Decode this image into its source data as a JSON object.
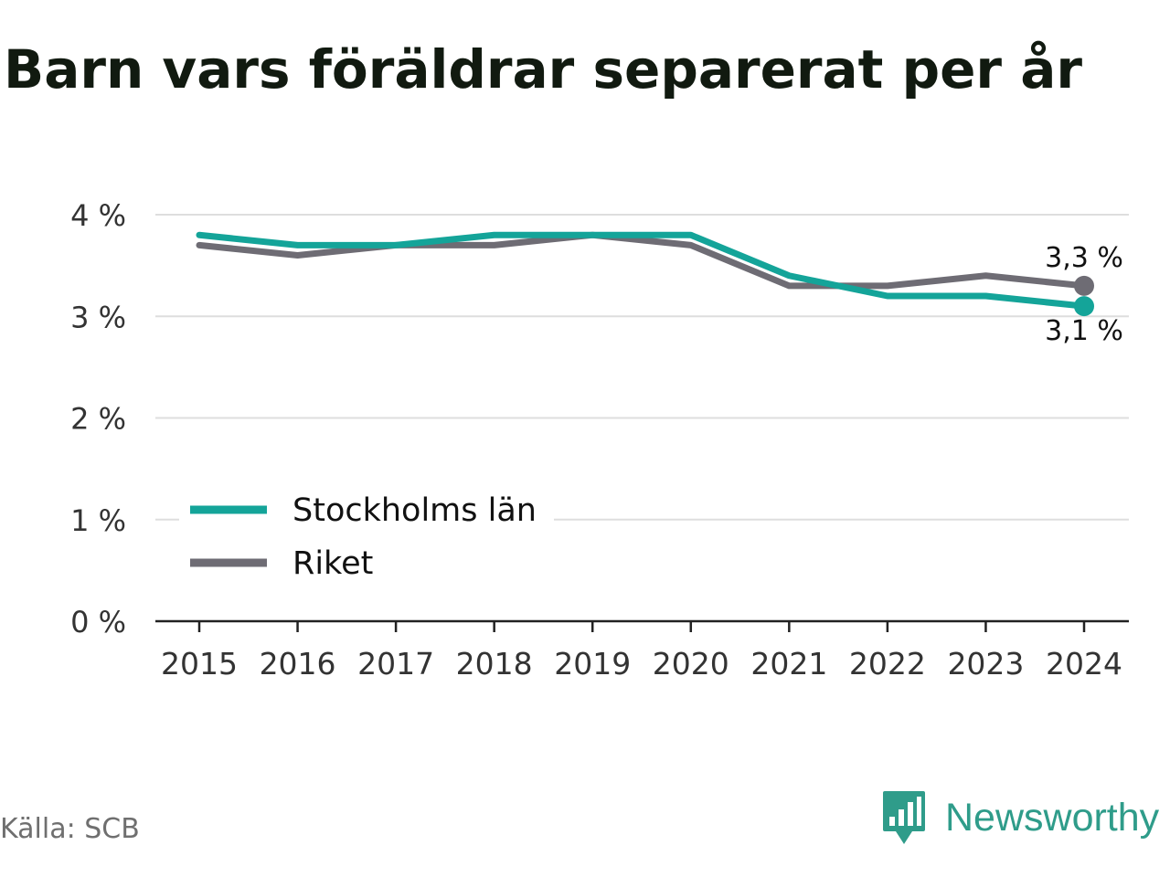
{
  "title": "Barn vars föräldrar separerat per år",
  "source": "Källa: SCB",
  "brand": {
    "name": "Newsworthy",
    "color": "#2f9c8a"
  },
  "colors": {
    "stockholm": "#14a499",
    "riket": "#6e6c74",
    "grid": "#dedede",
    "axis": "#222222"
  },
  "chart_data": {
    "type": "line",
    "categories": [
      "2015",
      "2016",
      "2017",
      "2018",
      "2019",
      "2020",
      "2021",
      "2022",
      "2023",
      "2024"
    ],
    "y_ticks": [
      "0 %",
      "1 %",
      "2 %",
      "3 %",
      "4 %"
    ],
    "ylim": [
      0,
      4
    ],
    "grid": true,
    "legend_position": "left, lower middle",
    "series": [
      {
        "name": "Stockholms län",
        "values": [
          3.8,
          3.7,
          3.7,
          3.8,
          3.8,
          3.8,
          3.4,
          3.2,
          3.2,
          3.1
        ],
        "end_label": "3,1 %"
      },
      {
        "name": "Riket",
        "values": [
          3.7,
          3.6,
          3.7,
          3.7,
          3.8,
          3.7,
          3.3,
          3.3,
          3.4,
          3.3
        ],
        "end_label": "3,3 %"
      }
    ]
  }
}
